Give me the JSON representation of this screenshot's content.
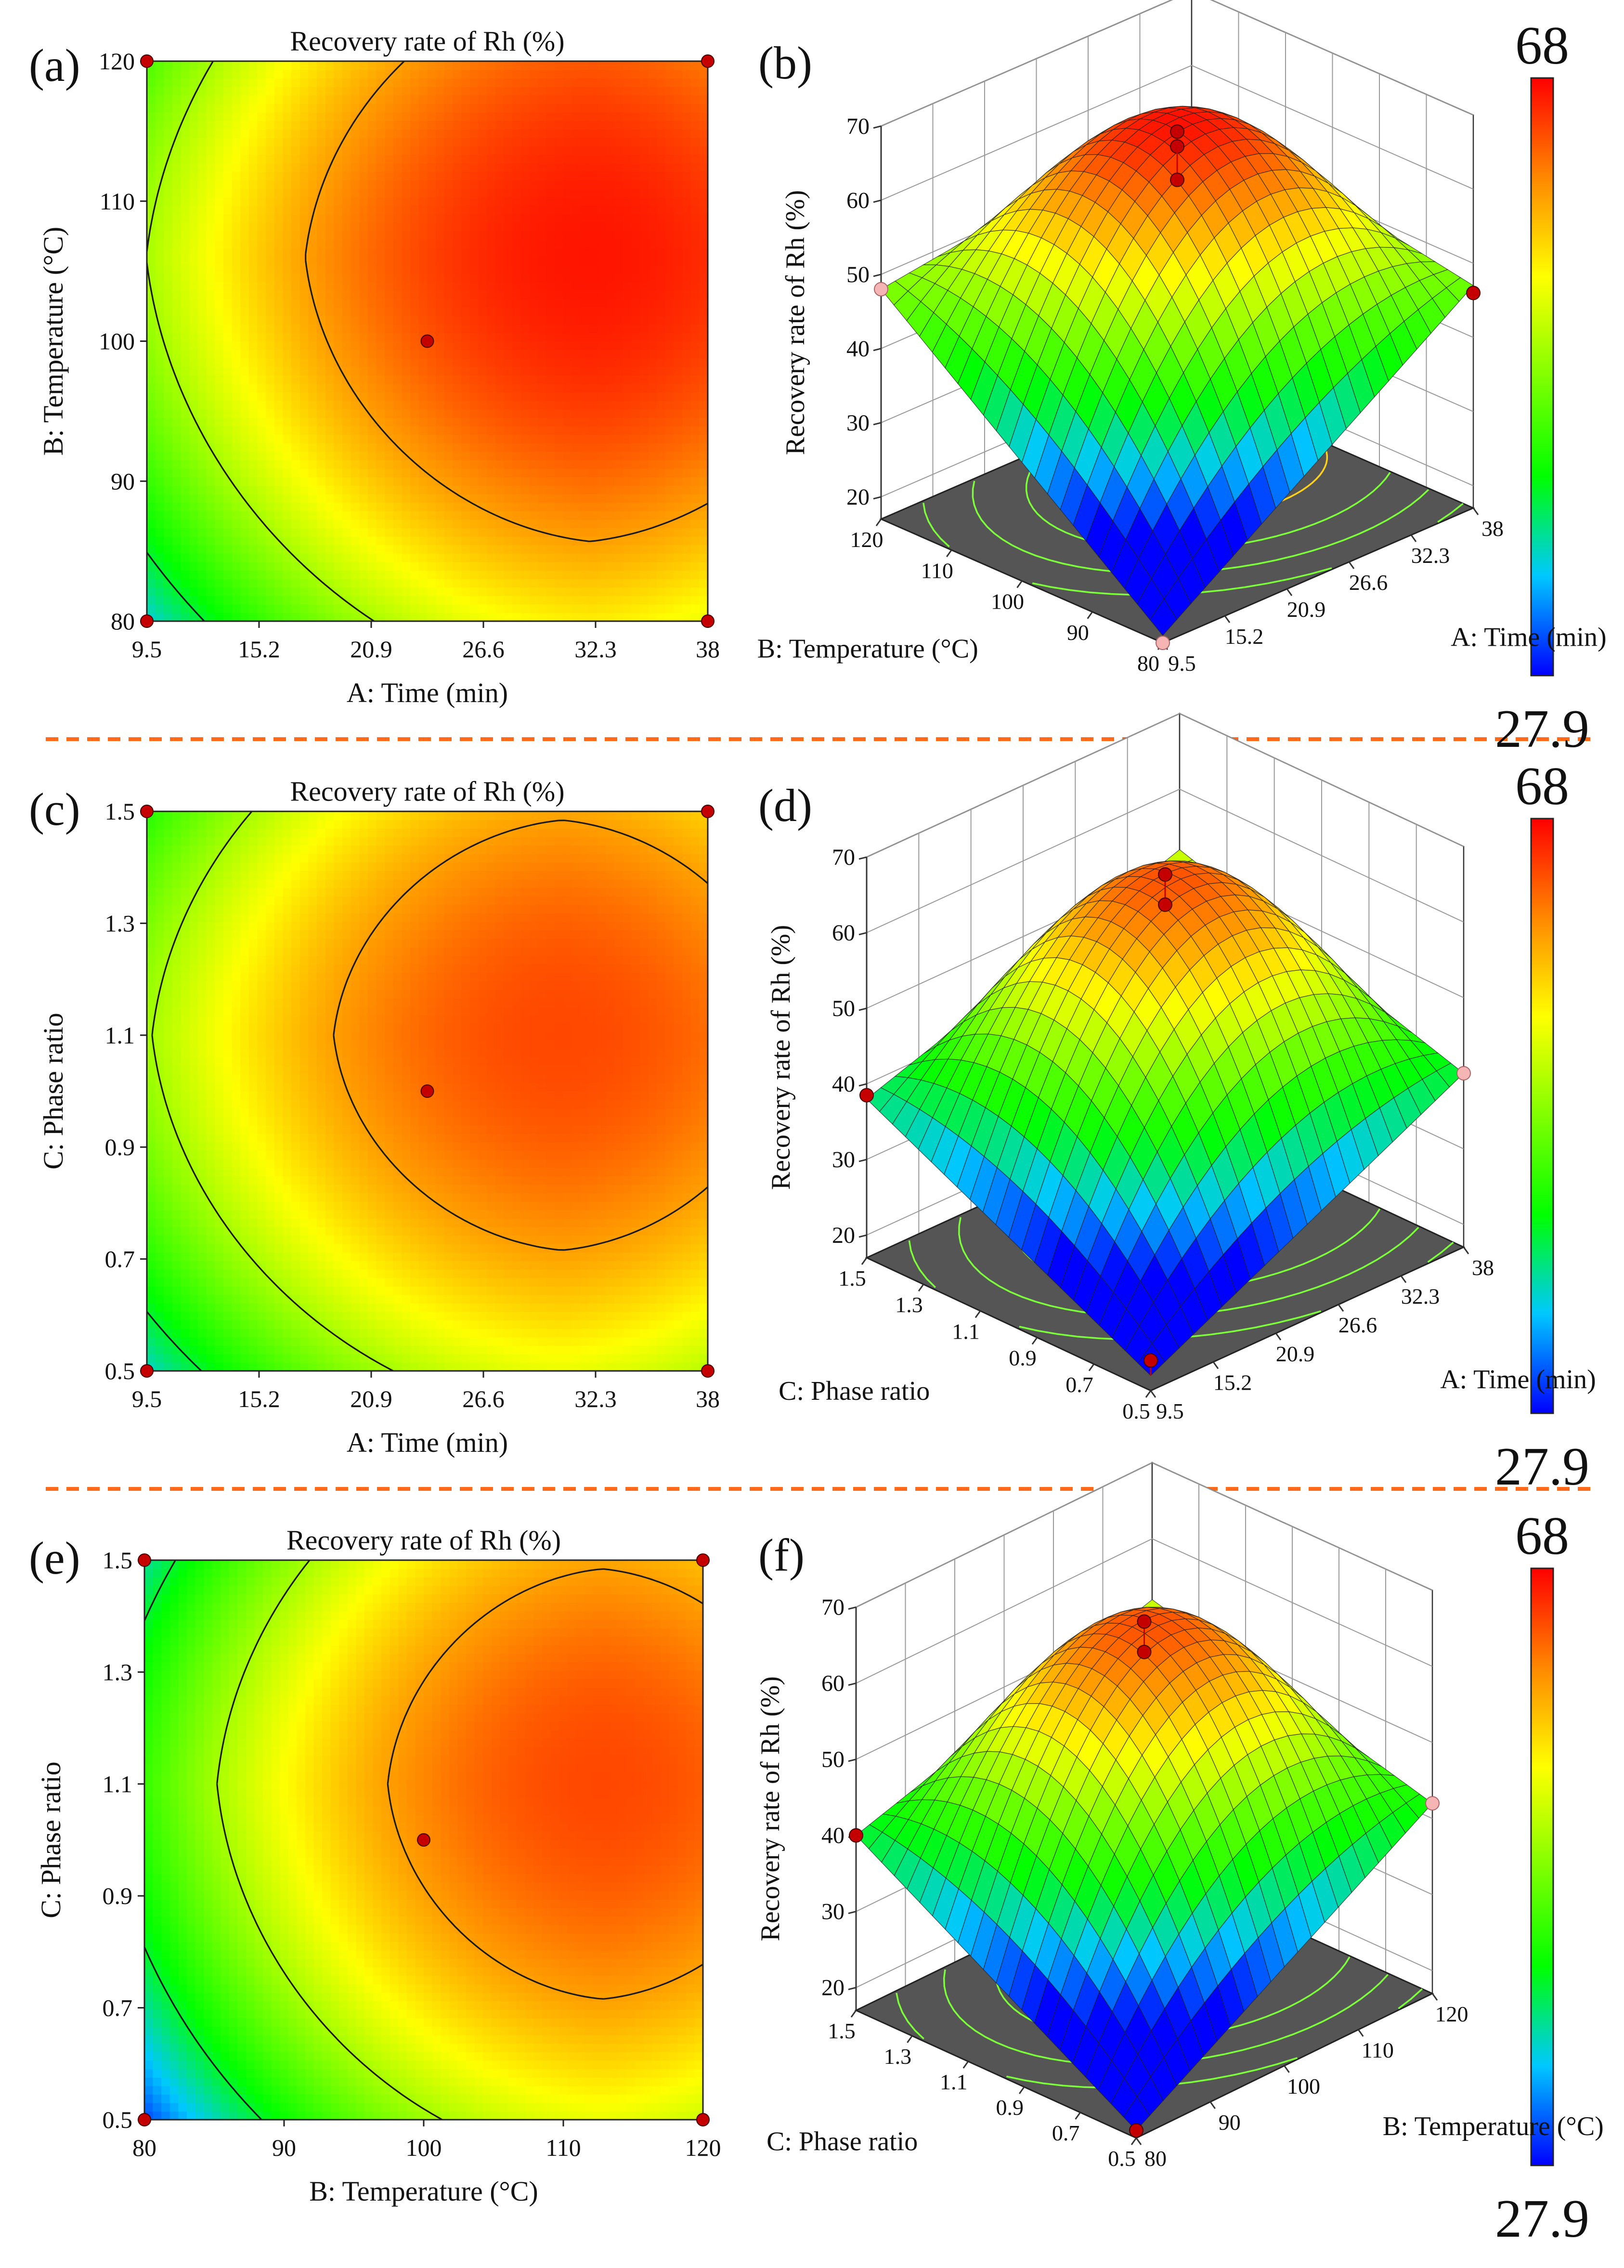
{
  "figure": {
    "panel_labels": [
      "(a)",
      "(b)",
      "(c)",
      "(d)",
      "(e)",
      "(f)"
    ],
    "colors": {
      "divider": "#ff6a1a",
      "contour_line": "#1a1a1a",
      "floor": "#555555",
      "floor_contour_green": "#7cff3a",
      "floor_contour_yellow": "#ffd21a",
      "design_point": "#c40000",
      "design_point_below": "#f5b5b5"
    },
    "colorbar": {
      "max_label": "68",
      "min_label": "27.9",
      "min": 27.9,
      "max": 68,
      "stops": [
        "#0000ff",
        "#00c8ff",
        "#00ff00",
        "#80ff00",
        "#ffff00",
        "#ff8800",
        "#ff0000"
      ]
    }
  },
  "chart_data": [
    {
      "panel": "(a)",
      "type": "contour",
      "title": "Recovery rate of Rh (%)",
      "xlabel": "A: Time (min)",
      "ylabel": "B: Temperature (°C)",
      "xticks": [
        "9.5",
        "15.2",
        "20.9",
        "26.6",
        "32.3",
        "38"
      ],
      "xlim": [
        9.5,
        38
      ],
      "yticks": [
        "80",
        "90",
        "100",
        "110",
        "120"
      ],
      "ylim": [
        80,
        120
      ],
      "contour_levels": [
        30,
        40,
        50,
        60
      ],
      "design_points": [
        [
          9.5,
          80
        ],
        [
          38,
          80
        ],
        [
          9.5,
          120
        ],
        [
          38,
          120
        ],
        [
          23.75,
          100
        ]
      ],
      "center": [
        23.75,
        100
      ]
    },
    {
      "panel": "(b)",
      "type": "surface",
      "zlabel": "Recovery rate of Rh (%)",
      "zticks": [
        "20",
        "30",
        "40",
        "50",
        "60",
        "70"
      ],
      "zlim": [
        17,
        70
      ],
      "right_axis": {
        "label": "A: Time (min)",
        "ticks": [
          "9.5",
          "15.2",
          "20.9",
          "26.6",
          "32.3",
          "38"
        ]
      },
      "left_axis": {
        "label": "B: Temperature (°C)",
        "ticks": [
          "80",
          "90",
          "100",
          "110",
          "120"
        ]
      },
      "corner_values": {
        "near": 18,
        "left": 48,
        "right": 47,
        "far": 54
      },
      "peak": 67,
      "design_points": [
        {
          "u": 0.5,
          "v": 0.5,
          "z": 68.5,
          "above": true
        },
        {
          "u": 0.5,
          "v": 0.5,
          "z": 66.5,
          "above": true
        },
        {
          "u": 0.5,
          "v": 0.5,
          "z": 62,
          "above": true
        },
        {
          "u": 0,
          "v": 1,
          "z": 48,
          "above": false
        },
        {
          "u": 1,
          "v": 0,
          "z": 46,
          "above": true
        },
        {
          "u": 0,
          "v": 0,
          "z": 17,
          "above": false
        }
      ]
    },
    {
      "panel": "(c)",
      "type": "contour",
      "title": "Recovery rate of Rh (%)",
      "xlabel": "A: Time (min)",
      "ylabel": "C: Phase ratio",
      "xticks": [
        "9.5",
        "15.2",
        "20.9",
        "26.6",
        "32.3",
        "38"
      ],
      "xlim": [
        9.5,
        38
      ],
      "yticks": [
        "0.5",
        "0.7",
        "0.9",
        "1.1",
        "1.3",
        "1.5"
      ],
      "ylim": [
        0.5,
        1.5
      ],
      "contour_levels": [
        30,
        40,
        50,
        60
      ],
      "design_points": [
        [
          9.5,
          0.5
        ],
        [
          38,
          0.5
        ],
        [
          9.5,
          1.5
        ],
        [
          38,
          1.5
        ],
        [
          23.75,
          1.0
        ]
      ],
      "center": [
        23.75,
        1.0
      ]
    },
    {
      "panel": "(d)",
      "type": "surface",
      "zlabel": "Recovery rate of Rh (%)",
      "zticks": [
        "20",
        "30",
        "40",
        "50",
        "60",
        "70"
      ],
      "zlim": [
        17,
        70
      ],
      "right_axis": {
        "label": "A: Time (min)",
        "ticks": [
          "9.5",
          "15.2",
          "20.9",
          "26.6",
          "32.3",
          "38"
        ]
      },
      "left_axis": {
        "label": "C: Phase ratio",
        "ticks": [
          "0.5",
          "0.7",
          "0.9",
          "1.1",
          "1.3",
          "1.5"
        ]
      },
      "corner_values": {
        "near": 19,
        "left": 38,
        "right": 40,
        "far": 52
      },
      "peak": 64,
      "design_points": [
        {
          "u": 0.5,
          "v": 0.5,
          "z": 67,
          "above": true
        },
        {
          "u": 0.5,
          "v": 0.5,
          "z": 63,
          "above": true
        },
        {
          "u": 0,
          "v": 1,
          "z": 38.5,
          "above": true
        },
        {
          "u": 1,
          "v": 0,
          "z": 40,
          "above": false
        },
        {
          "u": 0,
          "v": 0,
          "z": 21,
          "above": true
        }
      ]
    },
    {
      "panel": "(e)",
      "type": "contour",
      "title": "Recovery rate of Rh (%)",
      "xlabel": "B: Temperature (°C)",
      "ylabel": "C: Phase ratio",
      "xticks": [
        "80",
        "90",
        "100",
        "110",
        "120"
      ],
      "xlim": [
        80,
        120
      ],
      "yticks": [
        "0.5",
        "0.7",
        "0.9",
        "1.1",
        "1.3",
        "1.5"
      ],
      "ylim": [
        0.5,
        1.5
      ],
      "contour_levels": [
        30,
        40,
        50,
        60
      ],
      "design_points": [
        [
          80,
          0.5
        ],
        [
          120,
          0.5
        ],
        [
          80,
          1.5
        ],
        [
          120,
          1.5
        ],
        [
          100,
          1.0
        ]
      ],
      "center": [
        100,
        1.0
      ]
    },
    {
      "panel": "(f)",
      "type": "surface",
      "zlabel": "Recovery rate of Rh (%)",
      "zticks": [
        "20",
        "30",
        "40",
        "50",
        "60",
        "70"
      ],
      "zlim": [
        17,
        70
      ],
      "right_axis": {
        "label": "B: Temperature (°C)",
        "ticks": [
          "80",
          "90",
          "100",
          "110",
          "120"
        ]
      },
      "left_axis": {
        "label": "C: Phase ratio",
        "ticks": [
          "0.5",
          "0.7",
          "0.9",
          "1.1",
          "1.3",
          "1.5"
        ]
      },
      "corner_values": {
        "near": 18,
        "left": 40,
        "right": 42,
        "far": 52
      },
      "peak": 64,
      "design_points": [
        {
          "u": 0.5,
          "v": 0.5,
          "z": 67,
          "above": true
        },
        {
          "u": 0.5,
          "v": 0.5,
          "z": 63,
          "above": true
        },
        {
          "u": 0,
          "v": 1,
          "z": 40,
          "above": true
        },
        {
          "u": 1,
          "v": 0,
          "z": 42,
          "above": false
        },
        {
          "u": 0,
          "v": 0,
          "z": 18,
          "above": true
        }
      ]
    }
  ]
}
